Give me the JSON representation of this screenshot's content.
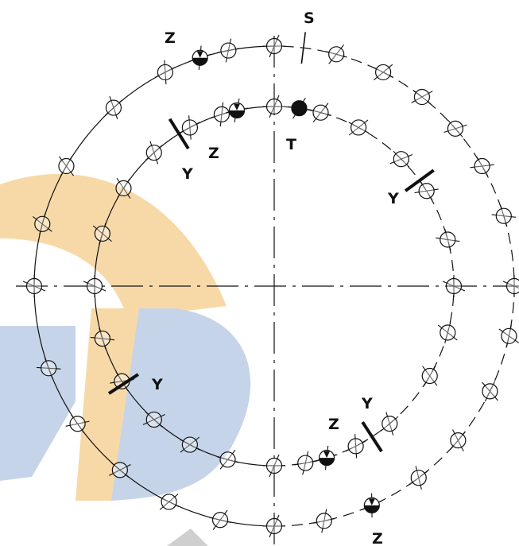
{
  "labels": {
    "s": "S",
    "t": "T",
    "y1": "Y",
    "y2": "Y",
    "y3": "Y",
    "y4": "Y",
    "z1": "Z",
    "z2": "Z",
    "z3": "Z",
    "z4": "Z"
  },
  "colors": {
    "line": "#111111",
    "watermark_orange": "#f7d9a8",
    "watermark_blue": "#c5d4e9",
    "watermark_gray": "#cfcfcf"
  }
}
